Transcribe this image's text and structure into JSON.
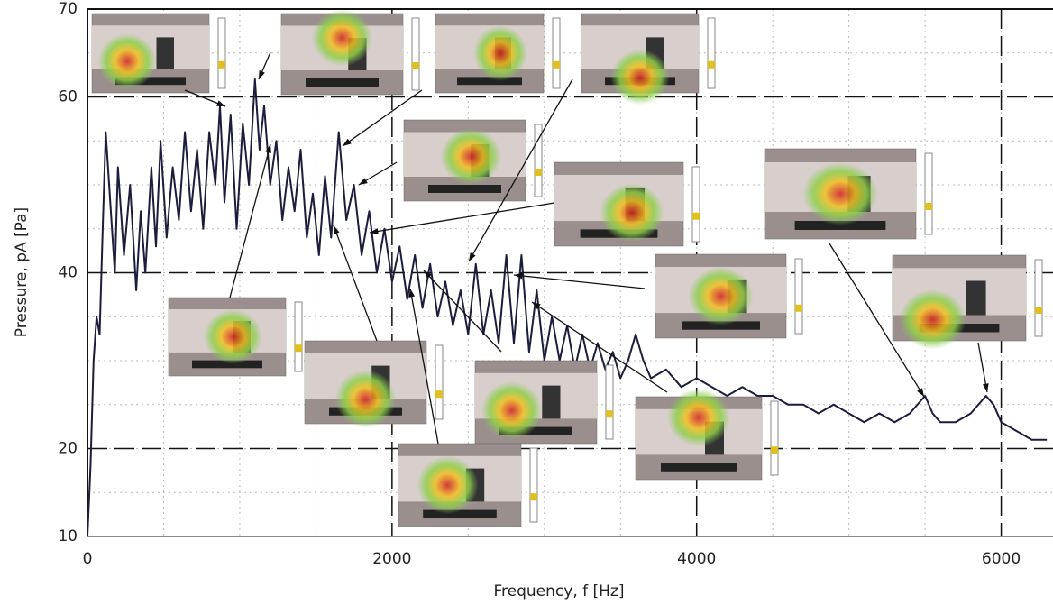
{
  "chart_data": {
    "type": "line",
    "x_label": "Frequency, f [Hz]",
    "y_label": "Pressure, pA [Pa]",
    "x": [
      0,
      20,
      40,
      60,
      80,
      100,
      120,
      150,
      180,
      200,
      240,
      280,
      320,
      350,
      380,
      420,
      450,
      480,
      520,
      560,
      600,
      640,
      680,
      720,
      760,
      800,
      840,
      870,
      900,
      940,
      980,
      1020,
      1060,
      1100,
      1130,
      1160,
      1200,
      1240,
      1280,
      1320,
      1360,
      1400,
      1440,
      1480,
      1520,
      1560,
      1600,
      1650,
      1700,
      1750,
      1800,
      1850,
      1900,
      1950,
      2000,
      2050,
      2100,
      2150,
      2200,
      2250,
      2300,
      2350,
      2400,
      2450,
      2500,
      2550,
      2600,
      2650,
      2700,
      2750,
      2800,
      2850,
      2900,
      2950,
      3000,
      3050,
      3100,
      3150,
      3200,
      3250,
      3300,
      3350,
      3400,
      3450,
      3500,
      3550,
      3600,
      3650,
      3700,
      3800,
      3900,
      4000,
      4100,
      4200,
      4300,
      4400,
      4500,
      4600,
      4700,
      4800,
      4900,
      5000,
      5100,
      5200,
      5300,
      5400,
      5500,
      5550,
      5600,
      5700,
      5800,
      5900,
      5950,
      6000,
      6100,
      6200,
      6300
    ],
    "values": [
      10,
      18,
      30,
      35,
      33,
      45,
      56,
      48,
      40,
      52,
      42,
      50,
      38,
      47,
      40,
      52,
      43,
      55,
      44,
      52,
      46,
      56,
      47,
      54,
      45,
      56,
      50,
      59,
      48,
      58,
      45,
      57,
      50,
      62,
      54,
      59,
      50,
      55,
      46,
      52,
      47,
      54,
      44,
      49,
      42,
      51,
      44,
      56,
      46,
      50,
      42,
      47,
      40,
      45,
      39,
      43,
      37,
      42,
      36,
      41,
      35,
      39,
      34,
      38,
      33,
      41,
      33,
      38,
      32,
      42,
      32,
      42,
      31,
      38,
      30,
      35,
      30,
      34,
      29,
      33,
      29,
      32,
      29,
      31,
      28,
      30,
      33,
      30,
      28,
      29,
      27,
      28,
      27,
      26,
      27,
      26,
      26,
      25,
      25,
      24,
      25,
      24,
      23,
      24,
      23,
      24,
      26,
      24,
      23,
      23,
      24,
      26,
      25,
      23,
      22,
      21,
      21
    ],
    "color": "#1c1c3c",
    "xlim": [
      0,
      6340
    ],
    "ylim": [
      10,
      70
    ],
    "xticks": [
      0,
      2000,
      4000,
      6000
    ],
    "yticks": [
      10,
      20,
      40,
      60,
      70
    ],
    "grid": true,
    "minor_grid": {
      "x": 500,
      "y": 5
    }
  }
}
